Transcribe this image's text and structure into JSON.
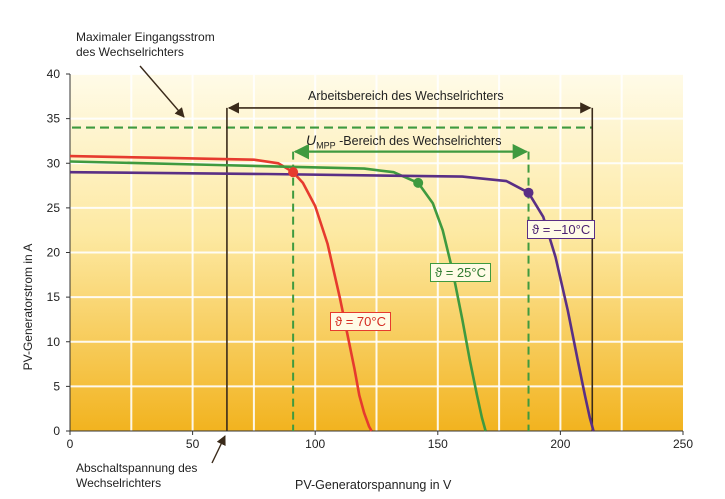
{
  "chart_data": {
    "type": "line",
    "xlabel": "PV-Generatorspannung in V",
    "ylabel": "PV-Generatorstrom in A",
    "xlim": [
      0,
      250
    ],
    "ylim": [
      0,
      40
    ],
    "x_ticks": [
      0,
      50,
      100,
      150,
      200,
      250
    ],
    "y_ticks": [
      0,
      5,
      10,
      15,
      20,
      25,
      30,
      35,
      40
    ],
    "grid": true,
    "series": [
      {
        "name": "ϑ = 70°C",
        "color": "#e63a2e",
        "x": [
          0,
          40,
          75,
          85,
          91,
          95,
          100,
          105,
          110,
          113,
          116,
          118,
          120,
          122,
          123
        ],
        "y": [
          30.8,
          30.6,
          30.4,
          30.0,
          29.0,
          27.8,
          25.2,
          21.0,
          15.0,
          11.0,
          7.0,
          4.0,
          2.0,
          0.5,
          0
        ]
      },
      {
        "name": "ϑ = 25°C",
        "color": "#3f9a3f",
        "x": [
          0,
          60,
          120,
          132,
          142,
          148,
          152,
          156,
          160,
          163,
          166,
          168,
          169.5
        ],
        "y": [
          30.2,
          29.8,
          29.4,
          29.0,
          27.8,
          25.5,
          22.5,
          18.0,
          12.5,
          8.0,
          4.0,
          1.5,
          0
        ]
      },
      {
        "name": "ϑ = –10°C",
        "color": "#5a2f85",
        "x": [
          0,
          80,
          160,
          178,
          187,
          193,
          198,
          203,
          207,
          210,
          212,
          213.5
        ],
        "y": [
          29.0,
          28.8,
          28.5,
          28.0,
          26.7,
          24.0,
          19.5,
          13.5,
          8.0,
          4.0,
          1.5,
          0
        ]
      }
    ],
    "mpp_points": [
      {
        "x": 91,
        "y": 29.0,
        "color": "#e63a2e"
      },
      {
        "x": 142,
        "y": 27.8,
        "color": "#3f9a3f"
      },
      {
        "x": 187,
        "y": 26.7,
        "color": "#5a2f85"
      }
    ],
    "max_current_line": {
      "y": 34,
      "x_from": 0,
      "x_to": 213
    },
    "vertical_lines": [
      {
        "x": 64,
        "style": "solid"
      },
      {
        "x": 213,
        "style": "solid"
      },
      {
        "x": 91,
        "style": "dashed"
      },
      {
        "x": 187,
        "style": "dashed"
      }
    ]
  },
  "annotations": {
    "max_input_line1": "Maximaler Eingangsstrom",
    "max_input_line2": "des Wechselrichters",
    "arbeitsbereich": "Arbeitsbereich des Wechselrichters",
    "umpp_u": "U",
    "umpp_sub": "MPP",
    "umpp_rest": " -Bereich des Wechselrichters",
    "abschalt_line1": "Abschaltspannung des",
    "abschalt_line2": "Wechselrichters",
    "label_70": "ϑ = 70°C",
    "label_25": "ϑ = 25°C",
    "label_m10": "ϑ = –10°C"
  }
}
